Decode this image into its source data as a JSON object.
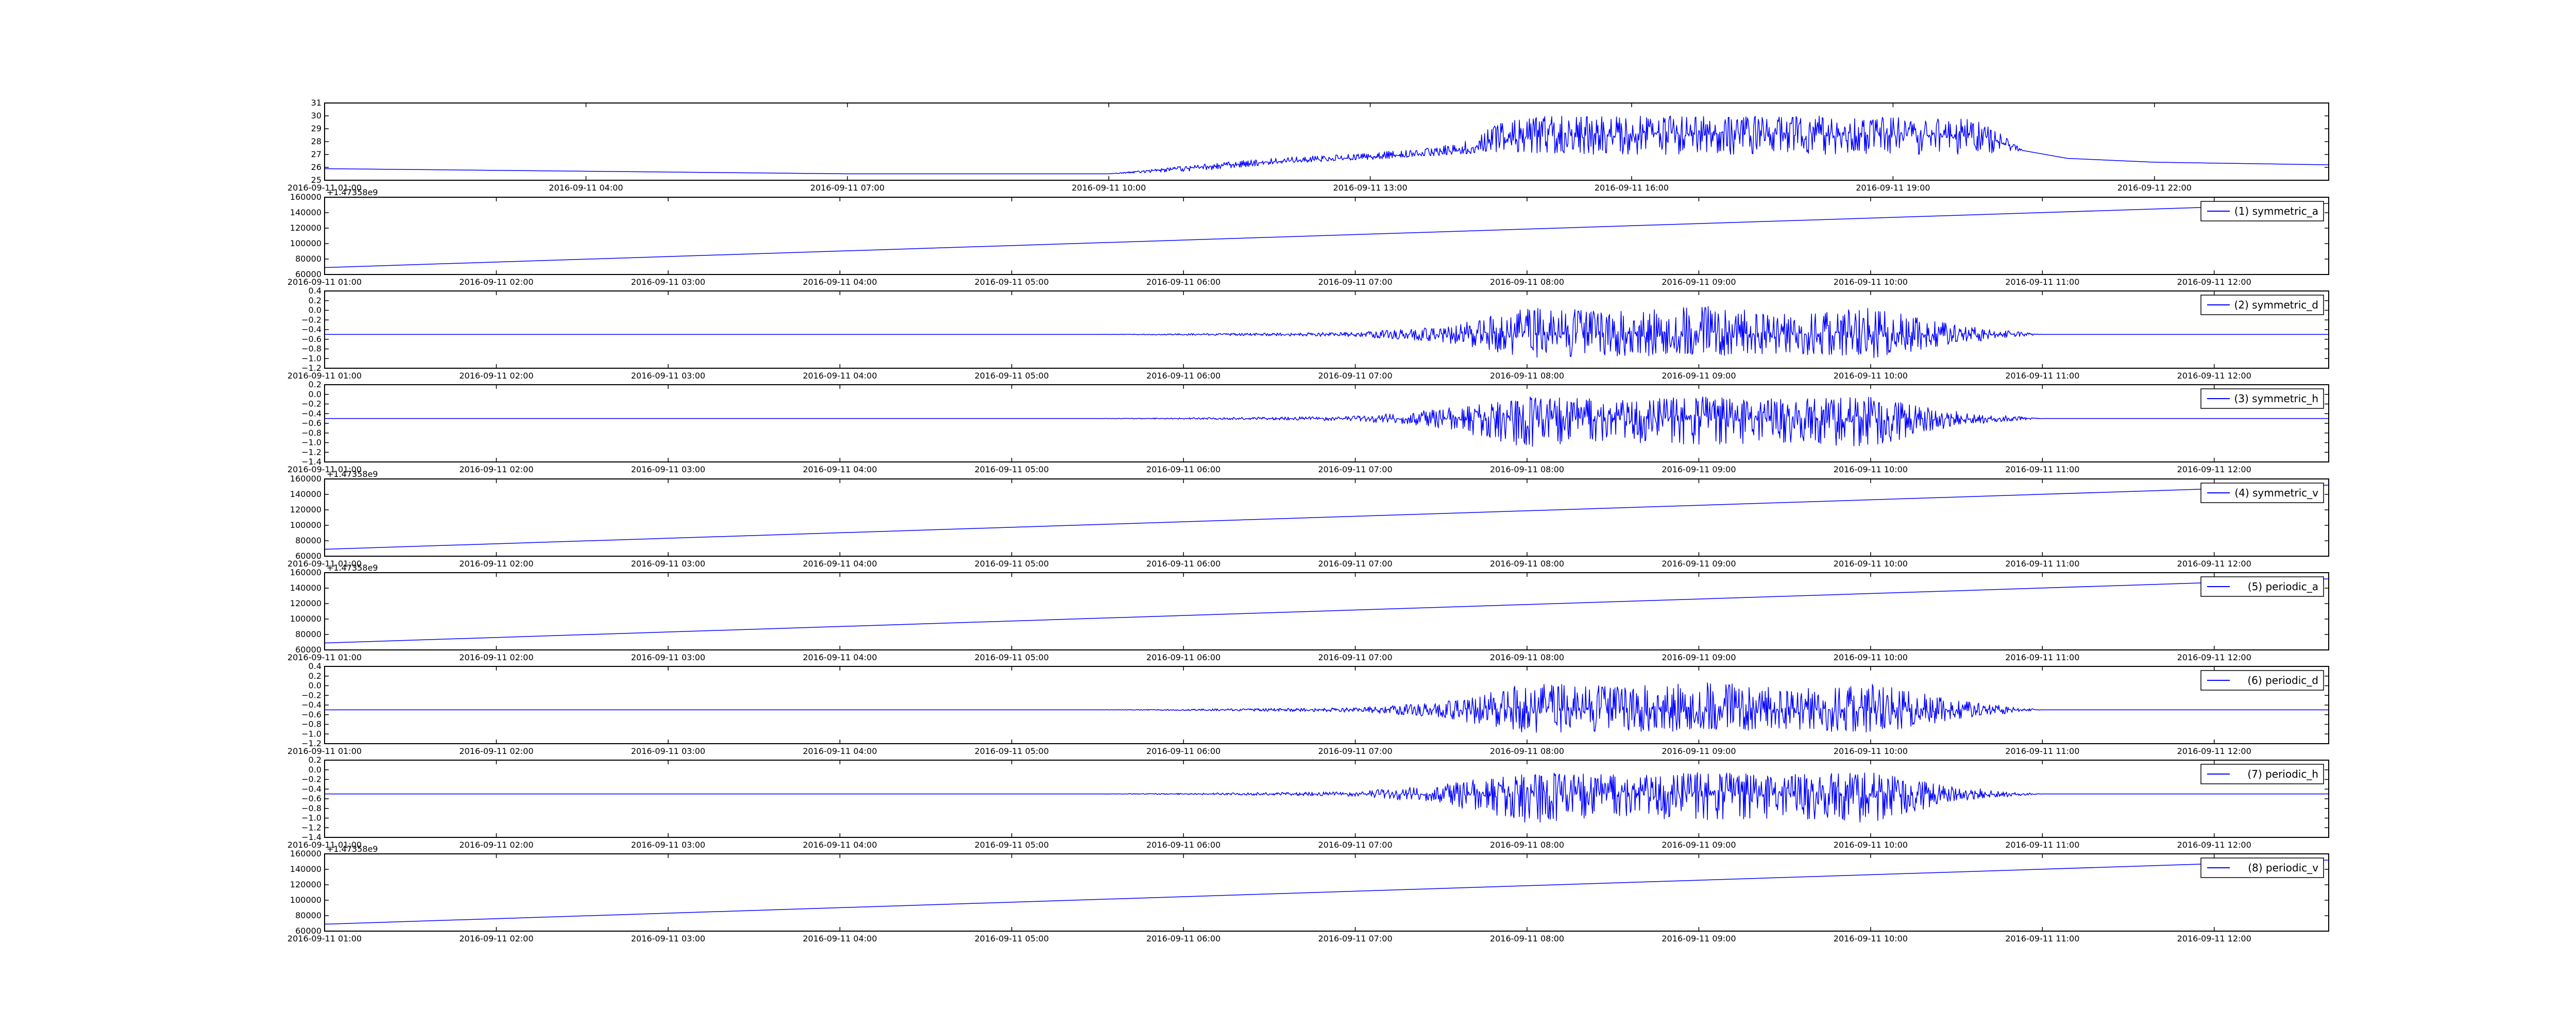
{
  "figure": {
    "series_color": "#0000ff",
    "background": "#ffffff"
  },
  "chart_data": [
    {
      "type": "line",
      "title": "",
      "legend": null,
      "ylim": [
        25,
        31
      ],
      "yticks": [
        "25",
        "26",
        "27",
        "28",
        "29",
        "30",
        "31"
      ],
      "xlim": [
        "2016-09-11 01:00",
        "2016-09-12 00:00"
      ],
      "xticks": [
        "2016-09-11 01:00",
        "2016-09-11 04:00",
        "2016-09-11 07:00",
        "2016-09-11 10:00",
        "2016-09-11 13:00",
        "2016-09-11 16:00",
        "2016-09-11 19:00",
        "2016-09-11 22:00"
      ],
      "x": [
        "2016-09-11 01:00",
        "2016-09-11 04:00",
        "2016-09-11 07:00",
        "2016-09-11 10:00",
        "2016-09-11 11:00",
        "2016-09-11 12:00",
        "2016-09-11 13:00",
        "2016-09-11 14:00",
        "2016-09-11 14:30",
        "2016-09-11 15:00",
        "2016-09-11 16:00",
        "2016-09-11 17:00",
        "2016-09-11 18:00",
        "2016-09-11 19:00",
        "2016-09-11 20:00",
        "2016-09-11 20:30",
        "2016-09-11 21:00",
        "2016-09-11 22:00",
        "2016-09-12 00:00"
      ],
      "y": [
        25.9,
        25.7,
        25.5,
        25.5,
        26.0,
        26.5,
        26.8,
        27.3,
        28.0,
        28.5,
        28.5,
        28.7,
        28.6,
        28.5,
        28.5,
        27.3,
        26.7,
        26.4,
        26.2
      ],
      "y_max": [
        25.9,
        25.7,
        25.5,
        25.5,
        26.2,
        26.8,
        27.1,
        27.8,
        29.5,
        30.0,
        30.0,
        30.0,
        30.0,
        29.9,
        29.8,
        27.3,
        26.7,
        26.4,
        26.2
      ],
      "y_min": [
        25.9,
        25.7,
        25.5,
        25.5,
        25.7,
        26.3,
        26.6,
        27.0,
        27.2,
        27.0,
        27.0,
        27.0,
        27.0,
        27.0,
        27.0,
        27.3,
        26.7,
        26.4,
        26.2
      ]
    },
    {
      "type": "line",
      "legend": "(1) symmetric_a",
      "offset_text": "+1.47358e9",
      "ylim": [
        60000,
        160000
      ],
      "yticks": [
        "60000",
        "80000",
        "100000",
        "120000",
        "140000",
        "160000"
      ],
      "xlim": [
        "2016-09-11 01:00",
        "2016-09-11 12:40"
      ],
      "xticks": [
        "2016-09-11 01:00",
        "2016-09-11 02:00",
        "2016-09-11 03:00",
        "2016-09-11 04:00",
        "2016-09-11 05:00",
        "2016-09-11 06:00",
        "2016-09-11 07:00",
        "2016-09-11 08:00",
        "2016-09-11 09:00",
        "2016-09-11 10:00",
        "2016-09-11 11:00",
        "2016-09-11 12:00"
      ],
      "x": [
        "2016-09-11 01:00",
        "2016-09-11 12:40"
      ],
      "y": [
        69000,
        152000
      ]
    },
    {
      "type": "line",
      "legend": "(2) symmetric_d",
      "ylim": [
        -1.2,
        0.4
      ],
      "yticks": [
        "−1.2",
        "−1.0",
        "−0.8",
        "−0.6",
        "−0.4",
        "−0.2",
        "0.0",
        "0.2",
        "0.4"
      ],
      "xlim": [
        "2016-09-11 01:00",
        "2016-09-11 12:40"
      ],
      "xticks": [
        "2016-09-11 01:00",
        "2016-09-11 02:00",
        "2016-09-11 03:00",
        "2016-09-11 04:00",
        "2016-09-11 05:00",
        "2016-09-11 06:00",
        "2016-09-11 07:00",
        "2016-09-11 08:00",
        "2016-09-11 09:00",
        "2016-09-11 10:00",
        "2016-09-11 11:00",
        "2016-09-11 12:00"
      ],
      "baseline": -0.5,
      "x": [
        "2016-09-11 01:00",
        "2016-09-11 05:30",
        "2016-09-11 06:30",
        "2016-09-11 07:00",
        "2016-09-11 07:30",
        "2016-09-11 08:00",
        "2016-09-11 08:30",
        "2016-09-11 09:00",
        "2016-09-11 09:30",
        "2016-09-11 10:00",
        "2016-09-11 10:30",
        "2016-09-11 11:00",
        "2016-09-11 12:40"
      ],
      "y_max": [
        -0.5,
        -0.5,
        -0.47,
        -0.45,
        -0.35,
        0.05,
        0.0,
        0.1,
        -0.05,
        0.05,
        -0.3,
        -0.5,
        -0.5
      ],
      "y_min": [
        -0.5,
        -0.5,
        -0.53,
        -0.55,
        -0.65,
        -1.0,
        -0.95,
        -0.95,
        -0.9,
        -1.0,
        -0.7,
        -0.5,
        -0.5
      ]
    },
    {
      "type": "line",
      "legend": "(3) symmetric_h",
      "ylim": [
        -1.4,
        0.2
      ],
      "yticks": [
        "−1.4",
        "−1.2",
        "−1.0",
        "−0.8",
        "−0.6",
        "−0.4",
        "−0.2",
        "0.0",
        "0.2"
      ],
      "xlim": [
        "2016-09-11 01:00",
        "2016-09-11 12:40"
      ],
      "xticks": [
        "2016-09-11 01:00",
        "2016-09-11 02:00",
        "2016-09-11 03:00",
        "2016-09-11 04:00",
        "2016-09-11 05:00",
        "2016-09-11 06:00",
        "2016-09-11 07:00",
        "2016-09-11 08:00",
        "2016-09-11 09:00",
        "2016-09-11 10:00",
        "2016-09-11 11:00",
        "2016-09-11 12:00"
      ],
      "baseline": -0.5,
      "x": [
        "2016-09-11 01:00",
        "2016-09-11 05:30",
        "2016-09-11 06:30",
        "2016-09-11 07:00",
        "2016-09-11 07:30",
        "2016-09-11 08:00",
        "2016-09-11 08:30",
        "2016-09-11 09:00",
        "2016-09-11 09:30",
        "2016-09-11 10:00",
        "2016-09-11 10:30",
        "2016-09-11 11:00",
        "2016-09-11 12:40"
      ],
      "y_max": [
        -0.5,
        -0.5,
        -0.47,
        -0.45,
        -0.3,
        -0.05,
        -0.1,
        -0.05,
        -0.1,
        -0.05,
        -0.35,
        -0.5,
        -0.5
      ],
      "y_min": [
        -0.5,
        -0.5,
        -0.53,
        -0.55,
        -0.7,
        -1.1,
        -1.0,
        -1.05,
        -1.0,
        -1.1,
        -0.65,
        -0.5,
        -0.5
      ]
    },
    {
      "type": "line",
      "legend": "(4) symmetric_v",
      "offset_text": "+1.47358e9",
      "ylim": [
        60000,
        160000
      ],
      "yticks": [
        "60000",
        "80000",
        "100000",
        "120000",
        "140000",
        "160000"
      ],
      "xlim": [
        "2016-09-11 01:00",
        "2016-09-11 12:40"
      ],
      "xticks": [
        "2016-09-11 01:00",
        "2016-09-11 02:00",
        "2016-09-11 03:00",
        "2016-09-11 04:00",
        "2016-09-11 05:00",
        "2016-09-11 06:00",
        "2016-09-11 07:00",
        "2016-09-11 08:00",
        "2016-09-11 09:00",
        "2016-09-11 10:00",
        "2016-09-11 11:00",
        "2016-09-11 12:00"
      ],
      "x": [
        "2016-09-11 01:00",
        "2016-09-11 12:40"
      ],
      "y": [
        69000,
        152000
      ]
    },
    {
      "type": "line",
      "legend": "(5) periodic_a",
      "offset_text": "+1.47358e9",
      "ylim": [
        60000,
        160000
      ],
      "yticks": [
        "60000",
        "80000",
        "100000",
        "120000",
        "140000",
        "160000"
      ],
      "xlim": [
        "2016-09-11 01:00",
        "2016-09-11 12:40"
      ],
      "xticks": [
        "2016-09-11 01:00",
        "2016-09-11 02:00",
        "2016-09-11 03:00",
        "2016-09-11 04:00",
        "2016-09-11 05:00",
        "2016-09-11 06:00",
        "2016-09-11 07:00",
        "2016-09-11 08:00",
        "2016-09-11 09:00",
        "2016-09-11 10:00",
        "2016-09-11 11:00",
        "2016-09-11 12:00"
      ],
      "x": [
        "2016-09-11 01:00",
        "2016-09-11 12:40"
      ],
      "y": [
        69000,
        152000
      ]
    },
    {
      "type": "line",
      "legend": "(6) periodic_d",
      "ylim": [
        -1.2,
        0.4
      ],
      "yticks": [
        "−1.2",
        "−1.0",
        "−0.8",
        "−0.6",
        "−0.4",
        "−0.2",
        "0.0",
        "0.2",
        "0.4"
      ],
      "xlim": [
        "2016-09-11 01:00",
        "2016-09-11 12:40"
      ],
      "xticks": [
        "2016-09-11 01:00",
        "2016-09-11 02:00",
        "2016-09-11 03:00",
        "2016-09-11 04:00",
        "2016-09-11 05:00",
        "2016-09-11 06:00",
        "2016-09-11 07:00",
        "2016-09-11 08:00",
        "2016-09-11 09:00",
        "2016-09-11 10:00",
        "2016-09-11 11:00",
        "2016-09-11 12:00"
      ],
      "baseline": -0.5,
      "x": [
        "2016-09-11 01:00",
        "2016-09-11 05:30",
        "2016-09-11 06:30",
        "2016-09-11 07:00",
        "2016-09-11 07:30",
        "2016-09-11 08:00",
        "2016-09-11 08:30",
        "2016-09-11 09:00",
        "2016-09-11 09:30",
        "2016-09-11 10:00",
        "2016-09-11 10:30",
        "2016-09-11 11:00",
        "2016-09-11 12:40"
      ],
      "y_max": [
        -0.5,
        -0.5,
        -0.47,
        -0.45,
        -0.35,
        0.05,
        0.0,
        0.1,
        -0.05,
        0.05,
        -0.3,
        -0.5,
        -0.5
      ],
      "y_min": [
        -0.5,
        -0.5,
        -0.53,
        -0.55,
        -0.65,
        -1.0,
        -0.95,
        -0.95,
        -0.9,
        -1.0,
        -0.7,
        -0.5,
        -0.5
      ]
    },
    {
      "type": "line",
      "legend": "(7) periodic_h",
      "ylim": [
        -1.4,
        0.2
      ],
      "yticks": [
        "−1.4",
        "−1.2",
        "−1.0",
        "−0.8",
        "−0.6",
        "−0.4",
        "−0.2",
        "0.0",
        "0.2"
      ],
      "xlim": [
        "2016-09-11 01:00",
        "2016-09-11 12:40"
      ],
      "xticks": [
        "2016-09-11 01:00",
        "2016-09-11 02:00",
        "2016-09-11 03:00",
        "2016-09-11 04:00",
        "2016-09-11 05:00",
        "2016-09-11 06:00",
        "2016-09-11 07:00",
        "2016-09-11 08:00",
        "2016-09-11 09:00",
        "2016-09-11 10:00",
        "2016-09-11 11:00",
        "2016-09-11 12:00"
      ],
      "baseline": -0.5,
      "x": [
        "2016-09-11 01:00",
        "2016-09-11 05:30",
        "2016-09-11 06:30",
        "2016-09-11 07:00",
        "2016-09-11 07:30",
        "2016-09-11 08:00",
        "2016-09-11 08:30",
        "2016-09-11 09:00",
        "2016-09-11 09:30",
        "2016-09-11 10:00",
        "2016-09-11 10:30",
        "2016-09-11 11:00",
        "2016-09-11 12:40"
      ],
      "y_max": [
        -0.5,
        -0.5,
        -0.47,
        -0.45,
        -0.3,
        -0.05,
        -0.1,
        -0.05,
        -0.1,
        -0.05,
        -0.35,
        -0.5,
        -0.5
      ],
      "y_min": [
        -0.5,
        -0.5,
        -0.53,
        -0.55,
        -0.7,
        -1.1,
        -1.0,
        -1.05,
        -1.0,
        -1.1,
        -0.65,
        -0.5,
        -0.5
      ]
    },
    {
      "type": "line",
      "legend": "(8) periodic_v",
      "offset_text": "+1.47358e9",
      "ylim": [
        60000,
        160000
      ],
      "yticks": [
        "60000",
        "80000",
        "100000",
        "120000",
        "140000",
        "160000"
      ],
      "xlim": [
        "2016-09-11 01:00",
        "2016-09-11 12:40"
      ],
      "xticks": [
        "2016-09-11 01:00",
        "2016-09-11 02:00",
        "2016-09-11 03:00",
        "2016-09-11 04:00",
        "2016-09-11 05:00",
        "2016-09-11 06:00",
        "2016-09-11 07:00",
        "2016-09-11 08:00",
        "2016-09-11 09:00",
        "2016-09-11 10:00",
        "2016-09-11 11:00",
        "2016-09-11 12:00"
      ],
      "x": [
        "2016-09-11 01:00",
        "2016-09-11 12:40"
      ],
      "y": [
        69000,
        152000
      ]
    }
  ]
}
